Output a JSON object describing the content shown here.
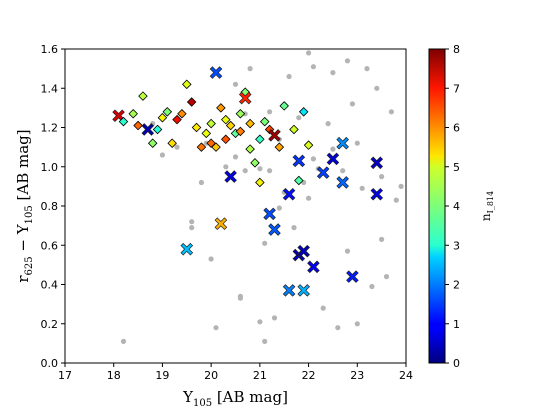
{
  "chart_data": {
    "type": "scatter",
    "title": "",
    "xlabel": "Y",
    "xlabel_sub": "105",
    "xlabel_unit": " [AB mag]",
    "ylabel_parts": [
      "r",
      "625",
      " − Y",
      "105",
      " [AB mag]"
    ],
    "xlim": [
      17,
      24
    ],
    "ylim": [
      0.0,
      1.6
    ],
    "xticks": [
      "17",
      "18",
      "19",
      "20",
      "21",
      "22",
      "23",
      "24"
    ],
    "yticks": [
      "0.0",
      "0.2",
      "0.4",
      "0.6",
      "0.8",
      "1.0",
      "1.2",
      "1.4",
      "1.6"
    ],
    "grid": false,
    "colorbar": {
      "label": "n",
      "label_sub": "I_814",
      "range": [
        0,
        8
      ],
      "ticks": [
        "0",
        "1",
        "2",
        "3",
        "4",
        "5",
        "6",
        "7",
        "8"
      ],
      "colormap": "jet"
    },
    "background_color": "#b4b4b4",
    "background_points": [
      [
        18.2,
        0.11
      ],
      [
        18.8,
        1.22
      ],
      [
        19.0,
        1.06
      ],
      [
        19.3,
        1.1
      ],
      [
        19.6,
        0.72
      ],
      [
        19.6,
        0.69
      ],
      [
        19.9,
        1.12
      ],
      [
        19.8,
        0.92
      ],
      [
        20.0,
        0.53
      ],
      [
        20.1,
        0.18
      ],
      [
        20.3,
        1.0
      ],
      [
        20.5,
        1.42
      ],
      [
        20.5,
        1.05
      ],
      [
        20.6,
        0.34
      ],
      [
        20.6,
        0.33
      ],
      [
        20.7,
        1.27
      ],
      [
        20.8,
        1.5
      ],
      [
        20.7,
        0.98
      ],
      [
        21.0,
        0.99
      ],
      [
        21.0,
        0.21
      ],
      [
        21.1,
        0.11
      ],
      [
        21.1,
        0.61
      ],
      [
        21.2,
        0.98
      ],
      [
        21.2,
        1.28
      ],
      [
        21.3,
        0.23
      ],
      [
        21.4,
        0.79
      ],
      [
        21.4,
        1.14
      ],
      [
        21.5,
        0.87
      ],
      [
        21.6,
        1.46
      ],
      [
        21.7,
        0.69
      ],
      [
        21.8,
        1.25
      ],
      [
        21.9,
        0.92
      ],
      [
        22.0,
        0.84
      ],
      [
        22.0,
        1.58
      ],
      [
        22.1,
        1.04
      ],
      [
        22.1,
        1.51
      ],
      [
        22.2,
        0.99
      ],
      [
        22.3,
        0.28
      ],
      [
        22.4,
        1.22
      ],
      [
        22.5,
        1.09
      ],
      [
        22.5,
        1.48
      ],
      [
        22.6,
        0.18
      ],
      [
        22.7,
        0.98
      ],
      [
        22.8,
        1.54
      ],
      [
        22.8,
        0.57
      ],
      [
        22.9,
        1.32
      ],
      [
        23.0,
        1.12
      ],
      [
        23.0,
        0.2
      ],
      [
        23.1,
        0.89
      ],
      [
        23.2,
        1.5
      ],
      [
        23.3,
        0.39
      ],
      [
        23.4,
        1.4
      ],
      [
        23.5,
        0.95
      ],
      [
        23.5,
        0.63
      ],
      [
        23.6,
        0.44
      ],
      [
        23.7,
        1.28
      ],
      [
        23.8,
        0.83
      ],
      [
        23.9,
        0.9
      ]
    ],
    "colored_points": [
      {
        "x": 18.1,
        "y": 1.26,
        "n": 7.4,
        "m": "x"
      },
      {
        "x": 18.2,
        "y": 1.23,
        "n": 3.2,
        "m": "d"
      },
      {
        "x": 18.4,
        "y": 1.27,
        "n": 4.4,
        "m": "d"
      },
      {
        "x": 18.5,
        "y": 1.21,
        "n": 6.4,
        "m": "d"
      },
      {
        "x": 18.6,
        "y": 1.36,
        "n": 4.6,
        "m": "d"
      },
      {
        "x": 18.7,
        "y": 1.19,
        "n": 0.3,
        "m": "x"
      },
      {
        "x": 18.8,
        "y": 1.12,
        "n": 4.2,
        "m": "d"
      },
      {
        "x": 18.9,
        "y": 1.19,
        "n": 3.1,
        "m": "d"
      },
      {
        "x": 19.0,
        "y": 1.25,
        "n": 5.2,
        "m": "d"
      },
      {
        "x": 19.1,
        "y": 1.28,
        "n": 4.0,
        "m": "d"
      },
      {
        "x": 19.2,
        "y": 1.12,
        "n": 5.4,
        "m": "d"
      },
      {
        "x": 19.3,
        "y": 1.24,
        "n": 7.2,
        "m": "d"
      },
      {
        "x": 19.4,
        "y": 1.27,
        "n": 6.1,
        "m": "d"
      },
      {
        "x": 19.5,
        "y": 1.42,
        "n": 5.0,
        "m": "d"
      },
      {
        "x": 19.6,
        "y": 1.33,
        "n": 7.6,
        "m": "d"
      },
      {
        "x": 19.7,
        "y": 1.2,
        "n": 5.3,
        "m": "d"
      },
      {
        "x": 19.5,
        "y": 0.58,
        "n": 2.5,
        "m": "x"
      },
      {
        "x": 19.8,
        "y": 1.1,
        "n": 6.3,
        "m": "d"
      },
      {
        "x": 19.9,
        "y": 1.17,
        "n": 5.1,
        "m": "d"
      },
      {
        "x": 20.0,
        "y": 1.12,
        "n": 6.4,
        "m": "d"
      },
      {
        "x": 20.0,
        "y": 1.22,
        "n": 4.7,
        "m": "d"
      },
      {
        "x": 20.1,
        "y": 1.48,
        "n": 1.6,
        "m": "x"
      },
      {
        "x": 20.1,
        "y": 1.1,
        "n": 5.6,
        "m": "d"
      },
      {
        "x": 20.2,
        "y": 1.3,
        "n": 6.0,
        "m": "d"
      },
      {
        "x": 20.2,
        "y": 0.71,
        "n": 5.8,
        "m": "x"
      },
      {
        "x": 20.3,
        "y": 1.24,
        "n": 5.1,
        "m": "d"
      },
      {
        "x": 20.3,
        "y": 1.14,
        "n": 6.6,
        "m": "d"
      },
      {
        "x": 20.4,
        "y": 0.95,
        "n": 0.7,
        "m": "x"
      },
      {
        "x": 20.4,
        "y": 1.21,
        "n": 5.5,
        "m": "d"
      },
      {
        "x": 20.5,
        "y": 1.17,
        "n": 3.7,
        "m": "d"
      },
      {
        "x": 20.6,
        "y": 1.27,
        "n": 4.3,
        "m": "d"
      },
      {
        "x": 20.6,
        "y": 1.18,
        "n": 6.2,
        "m": "d"
      },
      {
        "x": 20.7,
        "y": 1.38,
        "n": 4.1,
        "m": "d"
      },
      {
        "x": 20.7,
        "y": 1.35,
        "n": 7.0,
        "m": "x"
      },
      {
        "x": 20.8,
        "y": 1.09,
        "n": 4.5,
        "m": "d"
      },
      {
        "x": 20.8,
        "y": 1.22,
        "n": 5.7,
        "m": "d"
      },
      {
        "x": 20.9,
        "y": 1.02,
        "n": 4.2,
        "m": "d"
      },
      {
        "x": 21.0,
        "y": 1.14,
        "n": 3.3,
        "m": "d"
      },
      {
        "x": 21.0,
        "y": 0.92,
        "n": 5.2,
        "m": "d"
      },
      {
        "x": 21.1,
        "y": 1.23,
        "n": 4.0,
        "m": "d"
      },
      {
        "x": 21.2,
        "y": 1.19,
        "n": 6.7,
        "m": "d"
      },
      {
        "x": 21.2,
        "y": 0.76,
        "n": 1.6,
        "m": "x"
      },
      {
        "x": 21.3,
        "y": 0.68,
        "n": 1.7,
        "m": "x"
      },
      {
        "x": 21.3,
        "y": 1.16,
        "n": 7.8,
        "m": "x"
      },
      {
        "x": 21.4,
        "y": 1.1,
        "n": 5.9,
        "m": "d"
      },
      {
        "x": 21.5,
        "y": 1.31,
        "n": 3.8,
        "m": "d"
      },
      {
        "x": 21.6,
        "y": 0.86,
        "n": 1.1,
        "m": "x"
      },
      {
        "x": 21.6,
        "y": 0.37,
        "n": 2.0,
        "m": "x"
      },
      {
        "x": 21.7,
        "y": 1.19,
        "n": 4.8,
        "m": "d"
      },
      {
        "x": 21.8,
        "y": 1.03,
        "n": 1.4,
        "m": "x"
      },
      {
        "x": 21.8,
        "y": 0.93,
        "n": 3.6,
        "m": "d"
      },
      {
        "x": 21.8,
        "y": 0.55,
        "n": 0.3,
        "m": "x"
      },
      {
        "x": 21.9,
        "y": 0.57,
        "n": 0.4,
        "m": "x"
      },
      {
        "x": 21.9,
        "y": 1.28,
        "n": 2.8,
        "m": "d"
      },
      {
        "x": 21.9,
        "y": 0.37,
        "n": 2.4,
        "m": "x"
      },
      {
        "x": 22.0,
        "y": 1.11,
        "n": 4.9,
        "m": "d"
      },
      {
        "x": 22.1,
        "y": 0.49,
        "n": 0.8,
        "m": "x"
      },
      {
        "x": 22.3,
        "y": 0.97,
        "n": 1.5,
        "m": "x"
      },
      {
        "x": 22.5,
        "y": 1.04,
        "n": 0.6,
        "m": "x"
      },
      {
        "x": 22.7,
        "y": 0.92,
        "n": 1.8,
        "m": "x"
      },
      {
        "x": 22.7,
        "y": 1.12,
        "n": 2.1,
        "m": "x"
      },
      {
        "x": 22.9,
        "y": 0.44,
        "n": 1.2,
        "m": "x"
      },
      {
        "x": 23.4,
        "y": 1.02,
        "n": 0.5,
        "m": "x"
      },
      {
        "x": 23.4,
        "y": 0.86,
        "n": 0.7,
        "m": "x"
      }
    ]
  }
}
